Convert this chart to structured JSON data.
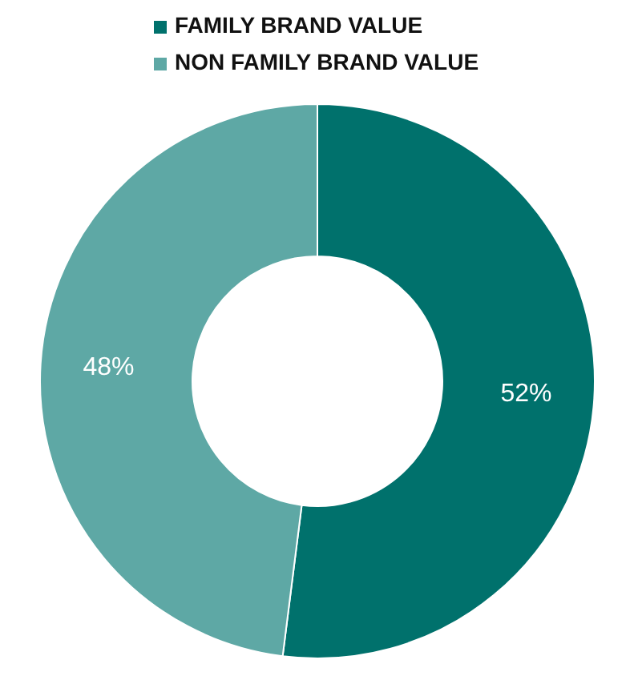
{
  "chart_data": {
    "type": "donut",
    "categories": [
      "FAMILY BRAND VALUE",
      "NON FAMILY BRAND VALUE"
    ],
    "values": [
      52,
      48
    ],
    "colors": [
      "#00716c",
      "#5ea8a5"
    ],
    "value_labels": [
      "52%",
      "48%"
    ],
    "legend": "top"
  }
}
